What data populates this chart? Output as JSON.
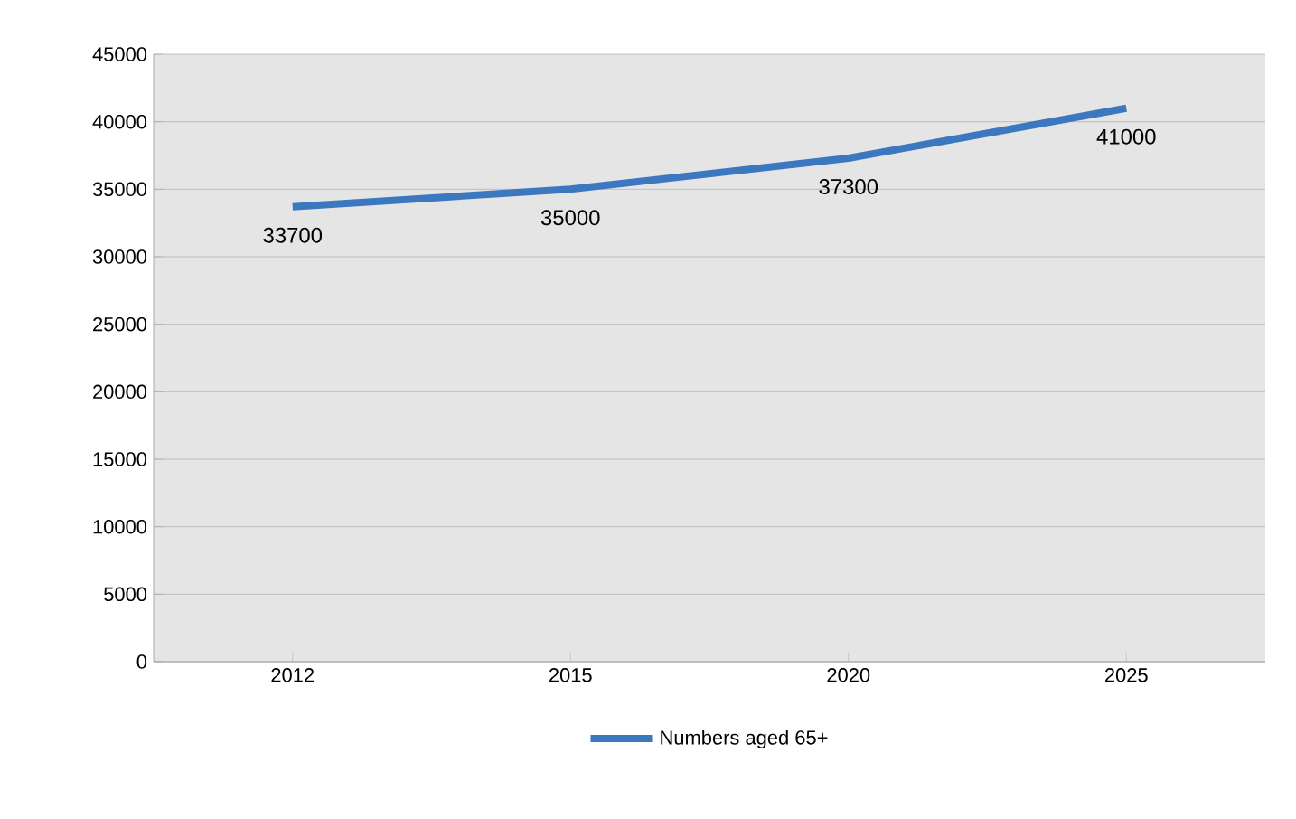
{
  "chart_data": {
    "type": "line",
    "categories": [
      "2012",
      "2015",
      "2020",
      "2025"
    ],
    "series": [
      {
        "name": "Numbers aged 65+",
        "color": "#3b78bf",
        "values": [
          33700,
          35000,
          37300,
          41000
        ]
      }
    ],
    "ylim": [
      0,
      45000
    ],
    "yticks": [
      0,
      5000,
      10000,
      15000,
      20000,
      25000,
      30000,
      35000,
      40000,
      45000
    ],
    "grid": "y",
    "legend": "bottom",
    "marker": "none",
    "line_style": "solid",
    "data_labels": true
  }
}
